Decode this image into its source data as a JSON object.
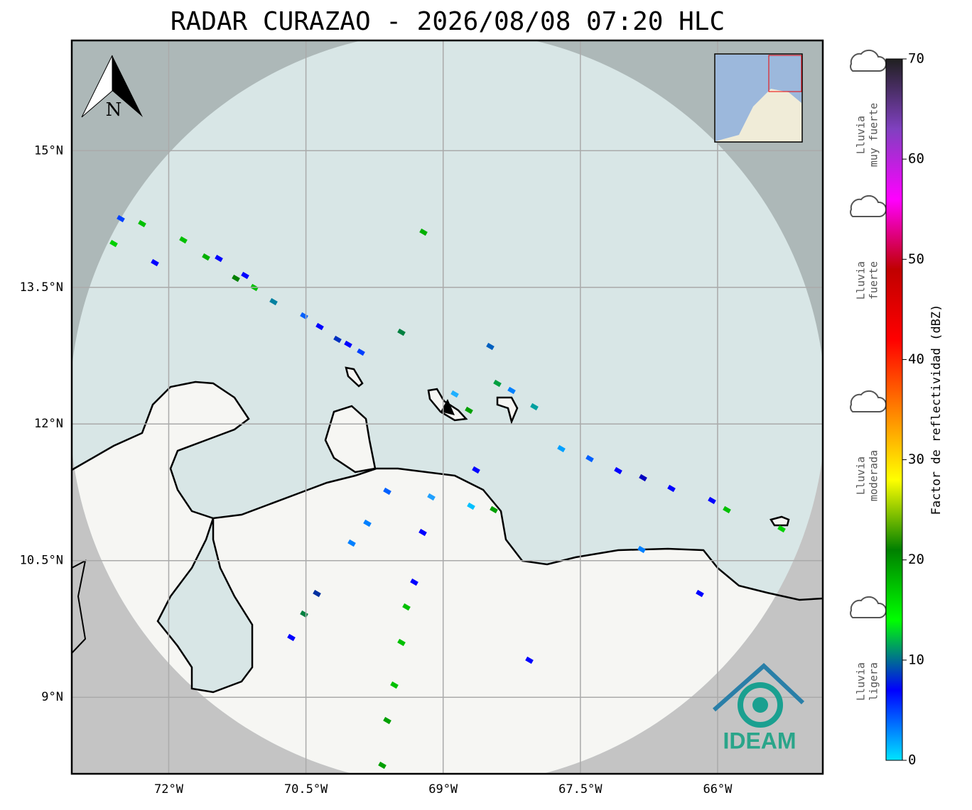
{
  "title": "RADAR CURAZAO - 2026/08/08 07:20 HLC",
  "map": {
    "lon_range": [
      -73.06,
      -64.85
    ],
    "lat_range": [
      8.16,
      16.21
    ],
    "lat_ticks": [
      {
        "value": 15,
        "label": "15°N"
      },
      {
        "value": 13.5,
        "label": "13.5°N"
      },
      {
        "value": 12,
        "label": "12°N"
      },
      {
        "value": 10.5,
        "label": "10.5°N"
      },
      {
        "value": 9,
        "label": "9°N"
      }
    ],
    "lon_ticks": [
      {
        "value": -72,
        "label": "72°W"
      },
      {
        "value": -70.5,
        "label": "70.5°W"
      },
      {
        "value": -69,
        "label": "69°W"
      },
      {
        "value": -67.5,
        "label": "67.5°W"
      },
      {
        "value": -66,
        "label": "66°W"
      }
    ],
    "north_label": "N"
  },
  "colorbar": {
    "label": "Factor de reflectividad (dBZ)",
    "range": [
      0,
      70
    ],
    "ticks": [
      0,
      10,
      20,
      30,
      40,
      50,
      60,
      70
    ],
    "colors": [
      "#00e5ff",
      "#0000ff",
      "#00ff00",
      "#008000",
      "#ffff00",
      "#ff8000",
      "#ff0000",
      "#c00000",
      "#ff00ff",
      "#8040c0",
      "#202020"
    ]
  },
  "legend": [
    {
      "lines": [
        "Lluvia",
        "muy fuerte"
      ]
    },
    {
      "lines": [
        "Lluvia",
        "fuerte"
      ]
    },
    {
      "lines": [
        "Lluvia",
        "moderada"
      ]
    },
    {
      "lines": [
        "Lluvia",
        "ligera"
      ]
    }
  ],
  "logo": "IDEAM"
}
